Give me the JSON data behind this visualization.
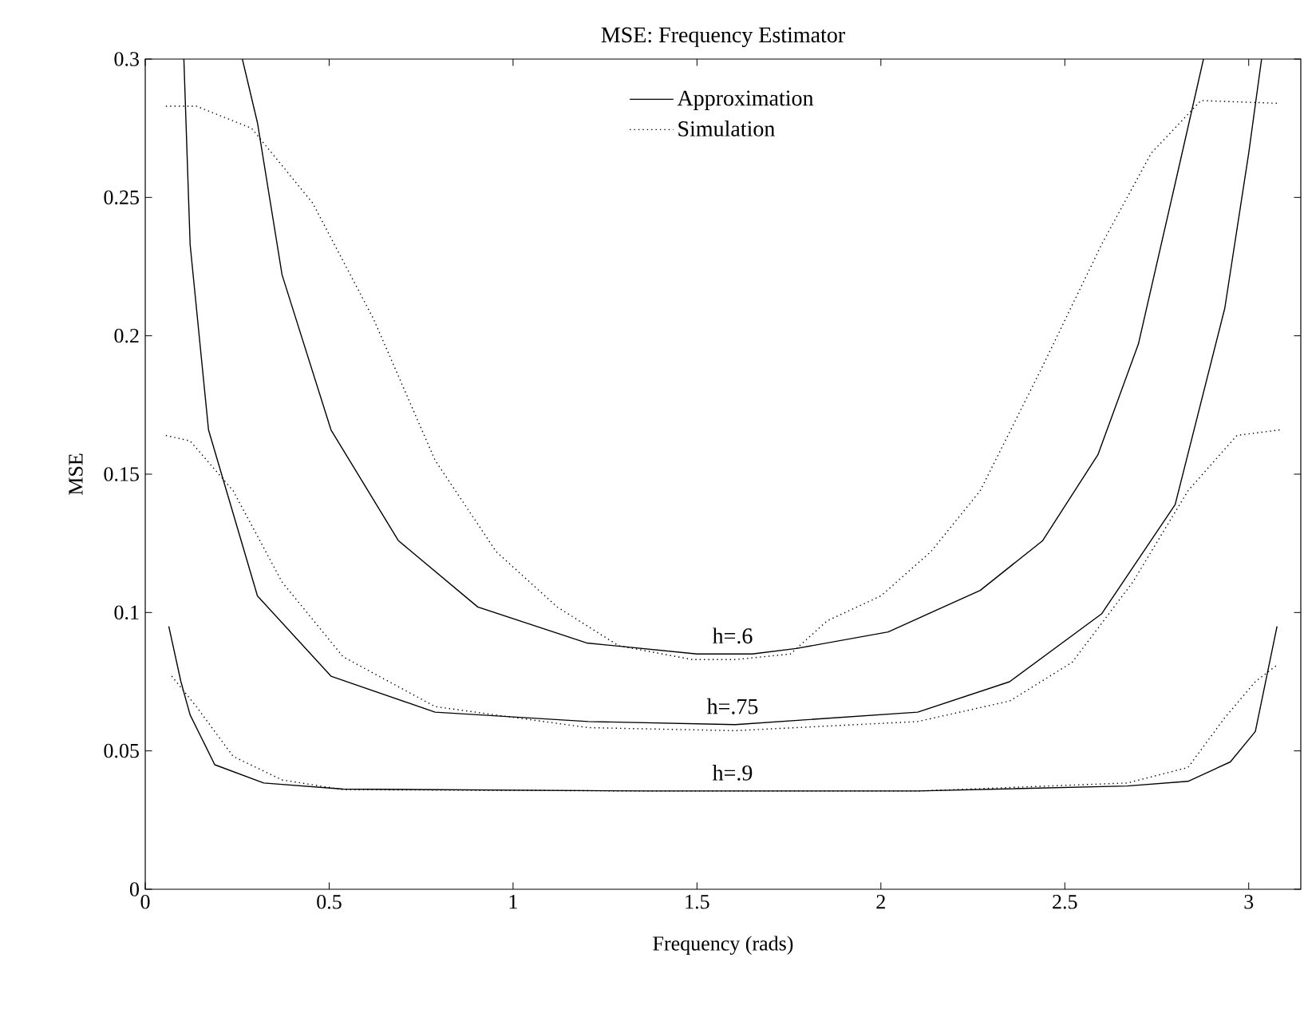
{
  "chart_data": {
    "type": "line",
    "title": "MSE: Frequency Estimator",
    "xlabel": "Frequency (rads)",
    "ylabel": "MSE",
    "xlim": [
      0,
      3.1416
    ],
    "ylim": [
      0,
      0.3
    ],
    "xticks": [
      0,
      0.5,
      1,
      1.5,
      2,
      2.5,
      3
    ],
    "yticks": [
      0,
      0.05,
      0.1,
      0.15,
      0.2,
      0.25,
      0.3
    ],
    "grid": false,
    "legend": "top",
    "marker": "none",
    "series": [
      {
        "name": "Approximation",
        "color": "#000000",
        "line_style": "solid",
        "x": [
          0.264,
          0.305,
          0.372,
          0.505,
          0.688,
          0.904,
          1.2,
          1.5,
          1.65,
          1.77,
          2.02,
          2.27,
          2.44,
          2.59,
          2.7,
          2.8,
          2.877
        ],
        "values": [
          0.3,
          0.277,
          0.222,
          0.166,
          0.126,
          0.102,
          0.089,
          0.085,
          0.085,
          0.087,
          0.093,
          0.108,
          0.126,
          0.157,
          0.197,
          0.255,
          0.3
        ]
      },
      {
        "name": "Simulation",
        "color": "#000000",
        "line_style": "dotted",
        "x": [
          0.056,
          0.139,
          0.289,
          0.455,
          0.621,
          0.788,
          0.954,
          1.12,
          1.287,
          1.487,
          1.604,
          1.754,
          1.854,
          2.0,
          2.136,
          2.27,
          2.436,
          2.6,
          2.735,
          2.87,
          3.085
        ],
        "values": [
          0.283,
          0.283,
          0.275,
          0.248,
          0.206,
          0.155,
          0.122,
          0.102,
          0.088,
          0.083,
          0.083,
          0.085,
          0.097,
          0.106,
          0.122,
          0.144,
          0.188,
          0.233,
          0.266,
          0.285,
          0.284
        ]
      },
      {
        "color": "#000000",
        "line_style": "solid",
        "x": [
          0.105,
          0.122,
          0.172,
          0.305,
          0.505,
          0.788,
          1.204,
          1.604,
          2.1,
          2.35,
          2.6,
          2.8,
          2.935,
          3.0,
          3.035
        ],
        "values": [
          0.3,
          0.233,
          0.166,
          0.106,
          0.077,
          0.064,
          0.0606,
          0.0595,
          0.064,
          0.075,
          0.0995,
          0.139,
          0.21,
          0.266,
          0.3
        ]
      },
      {
        "color": "#000000",
        "line_style": "dotted",
        "x": [
          0.056,
          0.122,
          0.239,
          0.372,
          0.538,
          0.788,
          1.204,
          1.604,
          2.1,
          2.35,
          2.52,
          2.685,
          2.835,
          2.968,
          3.085
        ],
        "values": [
          0.164,
          0.162,
          0.144,
          0.111,
          0.084,
          0.066,
          0.0584,
          0.0573,
          0.0606,
          0.068,
          0.082,
          0.111,
          0.144,
          0.164,
          0.166
        ]
      },
      {
        "color": "#000000",
        "line_style": "solid",
        "x": [
          0.064,
          0.097,
          0.122,
          0.189,
          0.322,
          0.538,
          1.37,
          2.1,
          2.67,
          2.835,
          2.95,
          3.018,
          3.077
        ],
        "values": [
          0.095,
          0.075,
          0.063,
          0.045,
          0.0384,
          0.0362,
          0.0355,
          0.0355,
          0.0373,
          0.039,
          0.046,
          0.057,
          0.095
        ]
      },
      {
        "color": "#000000",
        "line_style": "dotted",
        "x": [
          0.072,
          0.139,
          0.239,
          0.372,
          0.538,
          1.37,
          2.1,
          2.67,
          2.835,
          2.935,
          3.018,
          3.077
        ],
        "values": [
          0.077,
          0.066,
          0.048,
          0.0395,
          0.036,
          0.0355,
          0.0355,
          0.0384,
          0.044,
          0.062,
          0.075,
          0.081
        ]
      }
    ],
    "annotations": [
      "h=.6",
      "h=.75",
      "h=.9"
    ]
  }
}
